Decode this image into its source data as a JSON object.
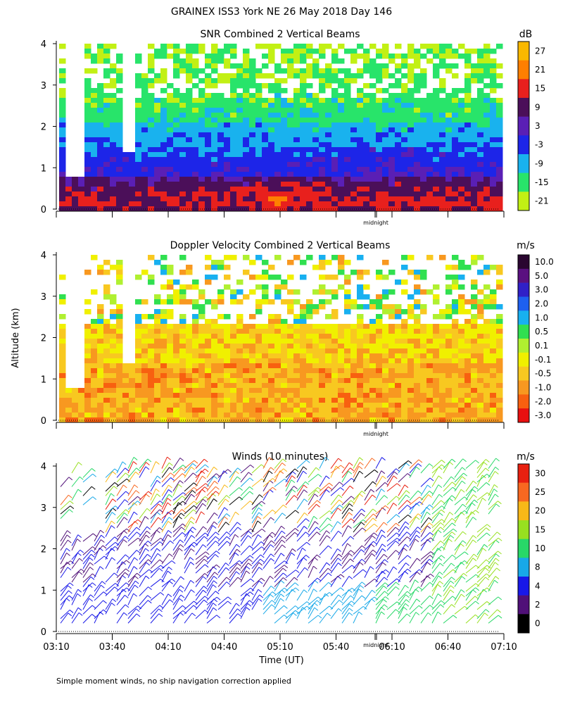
{
  "header": {
    "title": "GRAINEX ISS3 York NE  26 May 2018 Day 146",
    "ylabel": "Altitude (km)",
    "xlabel": "Time (UT)",
    "footnote": "Simple moment winds, no ship navigation correction applied",
    "midnight_label": "midnight"
  },
  "chart_data": [
    {
      "type": "heatmap",
      "title": "SNR Combined 2 Vertical Beams",
      "unit": "dB",
      "yticks": [
        "0",
        "1",
        "2",
        "3",
        "4"
      ],
      "ylim": [
        0,
        4
      ],
      "colorbar_labels": [
        "27",
        "21",
        "15",
        "9",
        "3",
        "-3",
        "-9",
        "-15",
        "-21"
      ],
      "colorbar_colors": [
        "#f9b800",
        "#ff7f00",
        "#e8201d",
        "#4b0f59",
        "#5a1fb5",
        "#1d25e8",
        "#19b2ee",
        "#28e46a",
        "#c2f014"
      ]
    },
    {
      "type": "heatmap",
      "title": "Doppler Velocity Combined 2 Vertical Beams",
      "unit": "m/s",
      "yticks": [
        "0",
        "1",
        "2",
        "3",
        "4"
      ],
      "ylim": [
        0,
        4
      ],
      "colorbar_labels": [
        "10.0",
        "5.0",
        "3.0",
        "2.0",
        "1.0",
        "0.5",
        "0.1",
        "-0.1",
        "-0.5",
        "-1.0",
        "-2.0",
        "-3.0"
      ],
      "colorbar_colors": [
        "#2a0630",
        "#5a1080",
        "#3020c8",
        "#1e60f0",
        "#18b0f0",
        "#30e050",
        "#b0f030",
        "#f0f000",
        "#f8c820",
        "#f89820",
        "#f86010",
        "#e81010"
      ]
    },
    {
      "type": "scatter",
      "title": "Winds (10 minutes)",
      "unit": "m/s",
      "yticks": [
        "0",
        "1",
        "2",
        "3",
        "4"
      ],
      "ylim": [
        0,
        4
      ],
      "x_ticks": [
        "03:10",
        "03:40",
        "04:10",
        "04:40",
        "05:10",
        "05:40",
        "06:10",
        "06:40",
        "07:10"
      ],
      "colorbar_labels": [
        "30",
        "25",
        "20",
        "15",
        "10",
        "8",
        "4",
        "2",
        "0"
      ],
      "colorbar_colors": [
        "#e82010",
        "#f86820",
        "#f8b818",
        "#98e020",
        "#28d868",
        "#18a8e8",
        "#1818e8",
        "#501078",
        "#000000"
      ]
    }
  ]
}
